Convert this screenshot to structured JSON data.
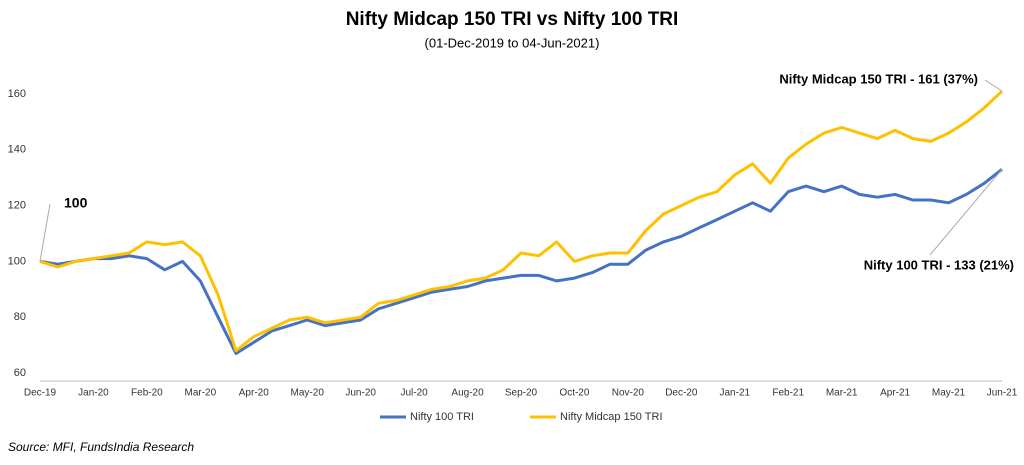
{
  "chart_data": {
    "type": "line",
    "title": "Nifty Midcap 150 TRI vs Nifty 100 TRI",
    "subtitle": "(01-Dec-2019 to 04-Jun-2021)",
    "categories": [
      "Dec-19",
      null,
      null,
      "Jan-20",
      null,
      null,
      "Feb-20",
      null,
      null,
      "Mar-20",
      null,
      null,
      "Apr-20",
      null,
      null,
      "May-20",
      null,
      null,
      "Jun-20",
      null,
      null,
      "Jul-20",
      null,
      null,
      "Aug-20",
      null,
      null,
      "Sep-20",
      null,
      null,
      "Oct-20",
      null,
      null,
      "Nov-20",
      null,
      null,
      "Dec-20",
      null,
      null,
      "Jan-21",
      null,
      null,
      "Feb-21",
      null,
      null,
      "Mar-21",
      null,
      null,
      "Apr-21",
      null,
      null,
      "May-21",
      null,
      null,
      "Jun-21"
    ],
    "series": [
      {
        "name": "Nifty 100 TRI",
        "color": "#4472c4",
        "values": [
          100,
          99,
          100,
          101,
          101,
          102,
          101,
          97,
          100,
          93,
          80,
          67,
          71,
          75,
          77,
          79,
          77,
          78,
          79,
          83,
          85,
          87,
          89,
          90,
          91,
          93,
          94,
          95,
          95,
          93,
          94,
          96,
          99,
          99,
          104,
          107,
          109,
          112,
          115,
          118,
          121,
          118,
          125,
          127,
          125,
          127,
          124,
          123,
          124,
          122,
          122,
          121,
          124,
          128,
          133
        ]
      },
      {
        "name": "Nifty Midcap 150 TRI",
        "color": "#ffc000",
        "values": [
          100,
          98,
          100,
          101,
          102,
          103,
          107,
          106,
          107,
          102,
          88,
          68,
          73,
          76,
          79,
          80,
          78,
          79,
          80,
          85,
          86,
          88,
          90,
          91,
          93,
          94,
          97,
          103,
          102,
          107,
          100,
          102,
          103,
          103,
          111,
          117,
          120,
          123,
          125,
          131,
          135,
          128,
          137,
          142,
          146,
          148,
          146,
          144,
          147,
          144,
          143,
          146,
          150,
          155,
          161
        ]
      }
    ],
    "ylim": [
      60,
      176
    ],
    "yticks": [
      60,
      80,
      100,
      120,
      140,
      160
    ],
    "annotations": [
      "100",
      "Nifty Midcap 150 TRI - 161 (37%)",
      "Nifty 100 TRI - 133 (21%)"
    ],
    "legend": "bottom",
    "source": "Source: MFI, FundsIndia Research"
  }
}
